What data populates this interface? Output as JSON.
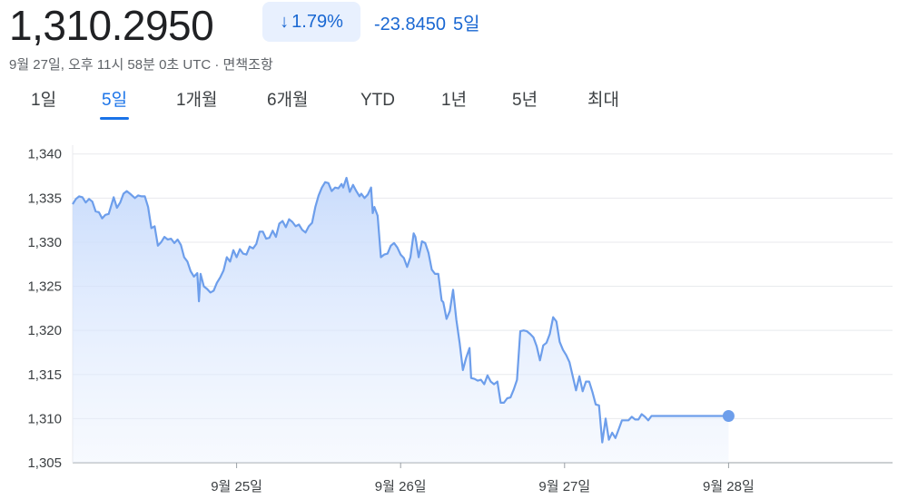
{
  "header": {
    "price": "1,310.2950",
    "change_percent": "1.79%",
    "change_value": "-23.8450",
    "change_period": "5일",
    "arrow_icon": "arrow-down-icon",
    "timestamp": "9월 27일, 오후 11시 58분 0초 UTC · 면책조항"
  },
  "tabs": [
    {
      "label": "1일",
      "active": false
    },
    {
      "label": "5일",
      "active": true
    },
    {
      "label": "1개월",
      "active": false
    },
    {
      "label": "6개월",
      "active": false
    },
    {
      "label": "YTD",
      "active": false
    },
    {
      "label": "1년",
      "active": false
    },
    {
      "label": "5년",
      "active": false
    },
    {
      "label": "최대",
      "active": false
    }
  ],
  "colors": {
    "accent": "#1a73e8",
    "line": "#6d9eeb",
    "chip_bg": "#e8f0fe"
  },
  "chart_data": {
    "type": "area",
    "y_ticks": [
      "1,340",
      "1,335",
      "1,330",
      "1,325",
      "1,320",
      "1,315",
      "1,310",
      "1,305"
    ],
    "y_values": [
      1340,
      1335,
      1330,
      1325,
      1320,
      1315,
      1310,
      1305
    ],
    "x_ticks": [
      {
        "label": "9월 25일",
        "t": 1
      },
      {
        "label": "9월 26일",
        "t": 2
      },
      {
        "label": "9월 27일",
        "t": 3
      },
      {
        "label": "9월 28일",
        "t": 4
      }
    ],
    "ylim": [
      1305,
      1341
    ],
    "xlim": [
      0,
      5
    ],
    "grid": true,
    "last_point": {
      "t": 4.0,
      "y": 1310.295
    },
    "series": [
      {
        "points": [
          [
            0.0,
            1334.3
          ],
          [
            0.02,
            1334.9
          ],
          [
            0.04,
            1335.2
          ],
          [
            0.06,
            1335.1
          ],
          [
            0.08,
            1334.5
          ],
          [
            0.1,
            1334.9
          ],
          [
            0.12,
            1334.6
          ],
          [
            0.14,
            1333.5
          ],
          [
            0.16,
            1333.4
          ],
          [
            0.18,
            1332.7
          ],
          [
            0.2,
            1333.1
          ],
          [
            0.22,
            1333.2
          ],
          [
            0.25,
            1335.1
          ],
          [
            0.27,
            1333.9
          ],
          [
            0.29,
            1334.5
          ],
          [
            0.31,
            1335.5
          ],
          [
            0.33,
            1335.8
          ],
          [
            0.35,
            1335.5
          ],
          [
            0.38,
            1335.0
          ],
          [
            0.4,
            1335.3
          ],
          [
            0.42,
            1335.2
          ],
          [
            0.44,
            1335.2
          ],
          [
            0.46,
            1334.0
          ],
          [
            0.48,
            1331.6
          ],
          [
            0.5,
            1331.8
          ],
          [
            0.52,
            1329.6
          ],
          [
            0.54,
            1330.0
          ],
          [
            0.56,
            1330.6
          ],
          [
            0.58,
            1330.3
          ],
          [
            0.6,
            1330.4
          ],
          [
            0.62,
            1329.9
          ],
          [
            0.64,
            1330.3
          ],
          [
            0.66,
            1329.7
          ],
          [
            0.68,
            1328.3
          ],
          [
            0.7,
            1327.8
          ],
          [
            0.72,
            1326.7
          ],
          [
            0.74,
            1326.1
          ],
          [
            0.76,
            1326.5
          ],
          [
            0.77,
            1323.3
          ],
          [
            0.78,
            1326.4
          ],
          [
            0.8,
            1325.0
          ],
          [
            0.82,
            1324.7
          ],
          [
            0.84,
            1324.3
          ],
          [
            0.86,
            1324.5
          ],
          [
            0.88,
            1325.4
          ],
          [
            0.9,
            1326.0
          ],
          [
            0.92,
            1326.8
          ],
          [
            0.94,
            1328.3
          ],
          [
            0.96,
            1327.8
          ],
          [
            0.98,
            1329.1
          ],
          [
            1.0,
            1328.3
          ],
          [
            1.02,
            1329.2
          ],
          [
            1.04,
            1328.7
          ],
          [
            1.06,
            1328.6
          ],
          [
            1.08,
            1329.5
          ],
          [
            1.1,
            1329.3
          ],
          [
            1.12,
            1329.8
          ],
          [
            1.14,
            1331.2
          ],
          [
            1.16,
            1331.2
          ],
          [
            1.18,
            1330.4
          ],
          [
            1.2,
            1330.5
          ],
          [
            1.22,
            1331.3
          ],
          [
            1.24,
            1330.6
          ],
          [
            1.26,
            1332.1
          ],
          [
            1.28,
            1332.4
          ],
          [
            1.3,
            1331.7
          ],
          [
            1.32,
            1332.6
          ],
          [
            1.34,
            1332.3
          ],
          [
            1.36,
            1331.8
          ],
          [
            1.38,
            1332.0
          ],
          [
            1.4,
            1331.4
          ],
          [
            1.42,
            1331.1
          ],
          [
            1.44,
            1331.8
          ],
          [
            1.46,
            1332.2
          ],
          [
            1.48,
            1334.0
          ],
          [
            1.5,
            1335.3
          ],
          [
            1.52,
            1336.2
          ],
          [
            1.54,
            1336.8
          ],
          [
            1.56,
            1336.7
          ],
          [
            1.58,
            1335.8
          ],
          [
            1.6,
            1336.2
          ],
          [
            1.62,
            1336.1
          ],
          [
            1.64,
            1336.6
          ],
          [
            1.65,
            1336.2
          ],
          [
            1.67,
            1337.3
          ],
          [
            1.69,
            1335.7
          ],
          [
            1.71,
            1336.5
          ],
          [
            1.73,
            1335.8
          ],
          [
            1.75,
            1335.2
          ],
          [
            1.76,
            1335.5
          ],
          [
            1.78,
            1335.0
          ],
          [
            1.8,
            1335.4
          ],
          [
            1.82,
            1336.2
          ],
          [
            1.83,
            1333.3
          ],
          [
            1.84,
            1334.0
          ],
          [
            1.86,
            1333.0
          ],
          [
            1.88,
            1328.3
          ],
          [
            1.9,
            1328.6
          ],
          [
            1.92,
            1328.7
          ],
          [
            1.94,
            1329.6
          ],
          [
            1.96,
            1329.9
          ],
          [
            1.98,
            1329.4
          ],
          [
            2.0,
            1328.6
          ],
          [
            2.02,
            1328.2
          ],
          [
            2.04,
            1327.2
          ],
          [
            2.06,
            1328.3
          ],
          [
            2.08,
            1331.0
          ],
          [
            2.09,
            1330.6
          ],
          [
            2.11,
            1328.3
          ],
          [
            2.13,
            1330.1
          ],
          [
            2.15,
            1329.9
          ],
          [
            2.17,
            1328.8
          ],
          [
            2.19,
            1326.9
          ],
          [
            2.21,
            1326.4
          ],
          [
            2.23,
            1326.4
          ],
          [
            2.25,
            1323.4
          ],
          [
            2.26,
            1323.2
          ],
          [
            2.28,
            1321.3
          ],
          [
            2.3,
            1322.2
          ],
          [
            2.32,
            1324.6
          ],
          [
            2.34,
            1321.2
          ],
          [
            2.36,
            1318.6
          ],
          [
            2.38,
            1315.5
          ],
          [
            2.4,
            1316.9
          ],
          [
            2.42,
            1318.0
          ],
          [
            2.43,
            1314.6
          ],
          [
            2.45,
            1314.5
          ],
          [
            2.47,
            1314.3
          ],
          [
            2.49,
            1314.4
          ],
          [
            2.51,
            1313.9
          ],
          [
            2.53,
            1314.9
          ],
          [
            2.55,
            1314.2
          ],
          [
            2.57,
            1313.9
          ],
          [
            2.59,
            1314.2
          ],
          [
            2.61,
            1311.8
          ],
          [
            2.63,
            1311.8
          ],
          [
            2.65,
            1312.3
          ],
          [
            2.67,
            1312.4
          ],
          [
            2.69,
            1313.3
          ],
          [
            2.71,
            1314.4
          ],
          [
            2.73,
            1319.9
          ],
          [
            2.75,
            1320.0
          ],
          [
            2.77,
            1319.9
          ],
          [
            2.79,
            1319.6
          ],
          [
            2.81,
            1319.2
          ],
          [
            2.83,
            1318.2
          ],
          [
            2.85,
            1316.6
          ],
          [
            2.87,
            1318.3
          ],
          [
            2.89,
            1318.6
          ],
          [
            2.91,
            1319.6
          ],
          [
            2.93,
            1321.5
          ],
          [
            2.95,
            1321.0
          ],
          [
            2.97,
            1318.7
          ],
          [
            2.99,
            1317.8
          ],
          [
            3.01,
            1317.2
          ],
          [
            3.03,
            1316.4
          ],
          [
            3.05,
            1314.8
          ],
          [
            3.07,
            1313.2
          ],
          [
            3.09,
            1314.8
          ],
          [
            3.11,
            1313.1
          ],
          [
            3.13,
            1314.2
          ],
          [
            3.15,
            1314.2
          ],
          [
            3.17,
            1313.0
          ],
          [
            3.19,
            1311.6
          ],
          [
            3.21,
            1311.5
          ],
          [
            3.23,
            1307.3
          ],
          [
            3.25,
            1310.0
          ],
          [
            3.27,
            1307.6
          ],
          [
            3.29,
            1308.4
          ],
          [
            3.31,
            1307.8
          ],
          [
            3.33,
            1308.8
          ],
          [
            3.35,
            1309.8
          ],
          [
            3.37,
            1309.8
          ],
          [
            3.39,
            1309.8
          ],
          [
            3.41,
            1310.2
          ],
          [
            3.43,
            1309.9
          ],
          [
            3.45,
            1309.9
          ],
          [
            3.47,
            1310.5
          ],
          [
            3.49,
            1310.2
          ],
          [
            3.51,
            1309.8
          ],
          [
            3.53,
            1310.3
          ],
          [
            3.6,
            1310.3
          ],
          [
            3.7,
            1310.3
          ],
          [
            3.8,
            1310.3
          ],
          [
            3.9,
            1310.3
          ],
          [
            4.0,
            1310.3
          ]
        ]
      }
    ]
  }
}
